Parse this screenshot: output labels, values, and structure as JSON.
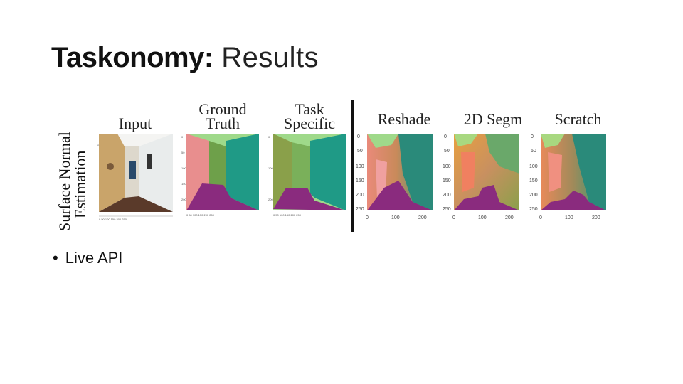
{
  "slide": {
    "title_bold": "Taskonomy:",
    "title_rest": "Results"
  },
  "figure": {
    "row_label_line1": "Surface Normal",
    "row_label_line2": "Estimation",
    "columns": [
      {
        "label_line1": "Input",
        "label_line2": ""
      },
      {
        "label_line1": "Ground",
        "label_line2": "Truth"
      },
      {
        "label_line1": "Task",
        "label_line2": "Specific"
      },
      {
        "label_line1": "Reshade",
        "label_line2": ""
      },
      {
        "label_line1": "2D Segm",
        "label_line2": ""
      },
      {
        "label_line1": "Scratch",
        "label_line2": ""
      }
    ],
    "small_panel_ticks_y": [
      "0",
      "50",
      "100",
      "150",
      "200",
      "250"
    ],
    "small_panel_ticks_x": [
      "0",
      "50",
      "100",
      "150",
      "200",
      "250"
    ],
    "large_panel_ticks_y": [
      "0",
      "50",
      "100",
      "150",
      "200",
      "250"
    ],
    "large_panel_ticks_x": [
      "0",
      "100",
      "200"
    ],
    "colors": {
      "green_light": "#9fd98a",
      "teal": "#1f9a86",
      "pink": "#e98a8a",
      "salmon": "#f09070",
      "purple": "#8a2b7e",
      "olive": "#8a9a3a",
      "orange": "#e8a040"
    }
  },
  "bullets": [
    {
      "text": "Live API"
    }
  ]
}
